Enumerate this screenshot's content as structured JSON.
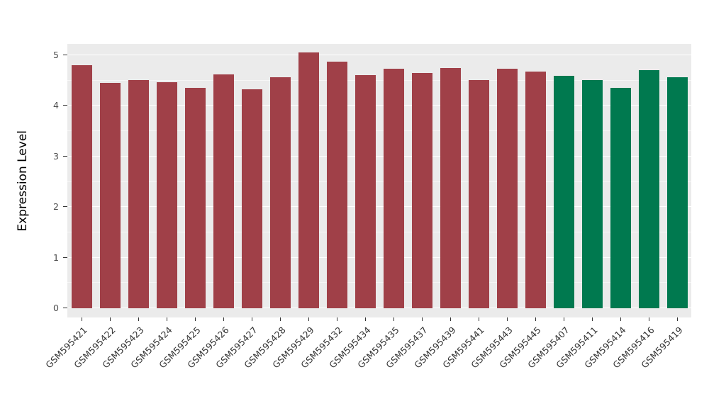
{
  "chart_data": {
    "type": "bar",
    "title": "",
    "xlabel": "",
    "ylabel": "Expression Level",
    "ylim": [
      0,
      5.25
    ],
    "yticks": [
      0,
      1,
      2,
      3,
      4,
      5
    ],
    "grid": true,
    "legend": "none",
    "panel_background": "#EBEBEB",
    "grid_color": "#FFFFFF",
    "categories": [
      "GSM595421",
      "GSM595422",
      "GSM595423",
      "GSM595424",
      "GSM595425",
      "GSM595426",
      "GSM595427",
      "GSM595428",
      "GSM595429",
      "GSM595432",
      "GSM595434",
      "GSM595435",
      "GSM595437",
      "GSM595439",
      "GSM595441",
      "GSM595443",
      "GSM595445",
      "GSM595407",
      "GSM595411",
      "GSM595414",
      "GSM595416",
      "GSM595419"
    ],
    "values": [
      4.8,
      4.45,
      4.51,
      4.47,
      4.36,
      4.62,
      4.33,
      4.57,
      5.06,
      4.87,
      4.61,
      4.73,
      4.65,
      4.75,
      4.51,
      4.73,
      4.68,
      4.59,
      4.51,
      4.36,
      4.71,
      4.57
    ],
    "group": [
      "case",
      "case",
      "case",
      "case",
      "case",
      "case",
      "case",
      "case",
      "case",
      "case",
      "case",
      "case",
      "case",
      "case",
      "case",
      "case",
      "case",
      "control",
      "control",
      "control",
      "control",
      "control"
    ],
    "palette": {
      "case": "#A04048",
      "control": "#00794F"
    }
  }
}
